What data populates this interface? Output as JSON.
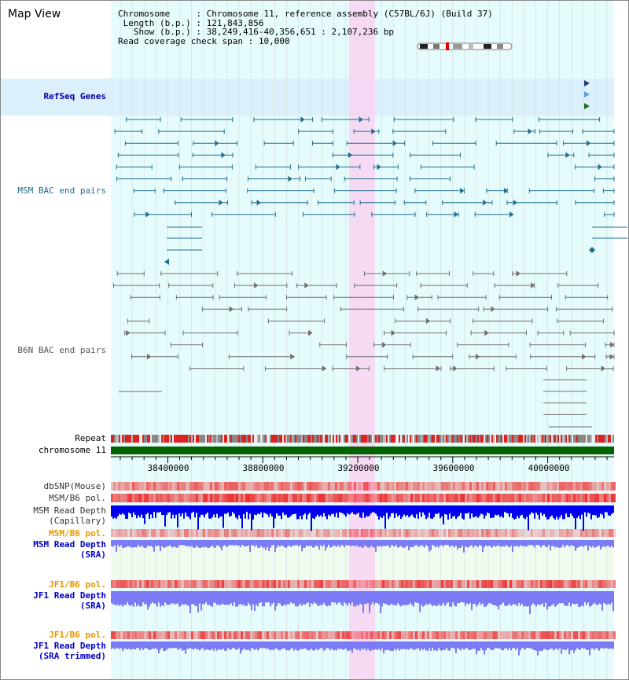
{
  "page": {
    "title": "Map View"
  },
  "info": {
    "chromosome_key": "Chromosome",
    "chromosome_val": "Chromosome 11, reference assembly (C57BL/6J) (Build 37)",
    "length_key": "Length (b.p.)",
    "length_val": "121,843,856",
    "show_key": "Show (b.p.)",
    "show_val": "38,249,416-40,356,651 : 2,107,236 bp",
    "coverage_key": "Read coverage check span",
    "coverage_val": "10,000"
  },
  "tracks": {
    "refseq": "RefSeq Genes",
    "msm_bac": "MSM BAC end pairs",
    "b6n_bac": "B6N BAC end pairs",
    "repeat": "Repeat",
    "chromosome": "chromosome 11",
    "dbsnp": "dbSNP(Mouse)",
    "msm_b6_pol_cap": "MSM/B6 pol.",
    "msm_depth_cap_1": "MSM Read Depth",
    "msm_depth_cap_2": "(Capillary)",
    "msm_b6_pol_sra": "MSM/B6 pol.",
    "msm_depth_sra_1": "MSM Read Depth",
    "msm_depth_sra_2": "(SRA)",
    "jf1_b6_pol_sra": "JF1/B6 pol.",
    "jf1_depth_sra_1": "JF1 Read Depth",
    "jf1_depth_sra_2": "(SRA)",
    "jf1_b6_pol_trim": "JF1/B6 pol.",
    "jf1_depth_trim_1": "JF1 Read Depth",
    "jf1_depth_trim_2": "(SRA trimmed)"
  },
  "axis": {
    "ticks": [
      "38400000",
      "38800000",
      "39200000",
      "39600000",
      "40000000"
    ]
  },
  "colors": {
    "refseq_band": "#dbf0fb",
    "track_bg": "#e6fbfb",
    "highlight": "#f7d6f3",
    "msm_feature": "#1e6e8c",
    "b6n_feature": "#6e6e6e",
    "chromosome_bar": "#006400",
    "depth_dark": "#0000ee",
    "depth_light": "#7b7bf5",
    "pol_red": "#ee2222"
  }
}
